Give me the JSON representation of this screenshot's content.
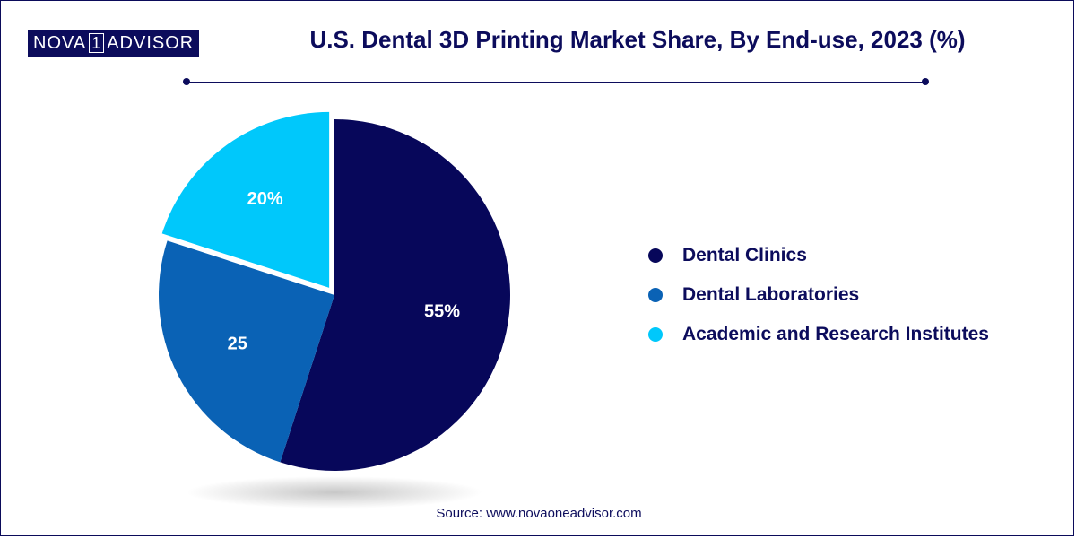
{
  "brand": {
    "logo_left": "NOVA",
    "logo_num": "1",
    "logo_right": "ADVISOR"
  },
  "title": "U.S. Dental 3D Printing Market Share, By End-use, 2023 (%)",
  "source": "Source: www.novaoneadvisor.com",
  "colors": {
    "navy": "#07075a",
    "blue": "#0a62b5",
    "cyan": "#00c8fb",
    "text": "#0c0c5c"
  },
  "chart_data": {
    "type": "pie",
    "title": "U.S. Dental 3D Printing Market Share, By End-use, 2023 (%)",
    "slices": [
      {
        "label": "Dental Clinics",
        "value": 55,
        "data_label": "55%",
        "color": "#07075a"
      },
      {
        "label": "Dental Laboratories",
        "value": 25,
        "data_label": "25",
        "color": "#0a62b5"
      },
      {
        "label": "Academic and Research Institutes",
        "value": 20,
        "data_label": "20%",
        "color": "#00c8fb"
      }
    ],
    "legend_position": "right",
    "exploded_slice": "Academic and Research Institutes"
  }
}
